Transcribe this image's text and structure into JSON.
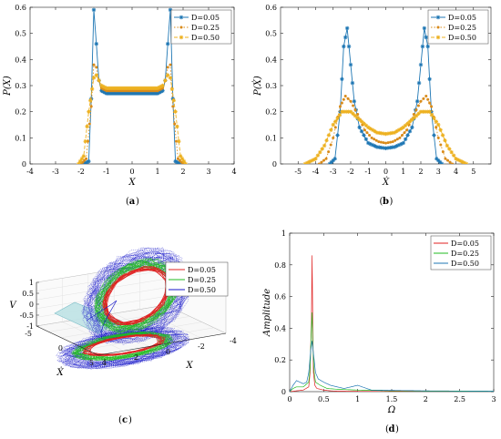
{
  "colors": {
    "blue": "#1f77b4",
    "orange": "#d98b1a",
    "yellow": "#edb120",
    "red": "#e02020",
    "green": "#22bb22",
    "darkblue": "#1515c8",
    "plane": "#bfe3e6"
  },
  "chart_data": [
    {
      "id": "a",
      "type": "line",
      "caption": "a",
      "xlabel": "X",
      "ylabel": "P(X)",
      "xlim": [
        -4,
        4
      ],
      "ylim": [
        0,
        0.6
      ],
      "xticks": [
        -4,
        -3,
        -2,
        -1,
        0,
        1,
        2,
        3,
        4
      ],
      "yticks": [
        0,
        0.1,
        0.2,
        0.3,
        0.4,
        0.5,
        0.6
      ],
      "legend_position": "top-right",
      "series": [
        {
          "name": "D=0.05",
          "style": "blue-star-solid",
          "x": [
            -1.9,
            -1.7,
            -1.6,
            -1.5,
            -1.4,
            -1.3,
            -1.2,
            -1.0,
            -0.5,
            0,
            0.5,
            1.0,
            1.2,
            1.3,
            1.4,
            1.5,
            1.6,
            1.7,
            1.9
          ],
          "y": [
            0,
            0.01,
            0.25,
            0.59,
            0.46,
            0.32,
            0.28,
            0.27,
            0.27,
            0.27,
            0.27,
            0.27,
            0.28,
            0.32,
            0.46,
            0.59,
            0.25,
            0.01,
            0
          ]
        },
        {
          "name": "D=0.25",
          "style": "orange-dot-dotted",
          "x": [
            -2.0,
            -1.8,
            -1.6,
            -1.5,
            -1.4,
            -1.3,
            -1.2,
            -1.0,
            -0.5,
            0,
            0.5,
            1.0,
            1.2,
            1.3,
            1.4,
            1.5,
            1.6,
            1.8,
            2.0
          ],
          "y": [
            0,
            0.02,
            0.22,
            0.38,
            0.37,
            0.32,
            0.29,
            0.28,
            0.28,
            0.28,
            0.28,
            0.28,
            0.29,
            0.32,
            0.37,
            0.38,
            0.22,
            0.02,
            0
          ]
        },
        {
          "name": "D=0.50",
          "style": "yellow-star-dashed",
          "x": [
            -2.1,
            -1.9,
            -1.7,
            -1.5,
            -1.4,
            -1.3,
            -1.2,
            -1.0,
            -0.5,
            0,
            0.5,
            1.0,
            1.2,
            1.3,
            1.4,
            1.5,
            1.7,
            1.9,
            2.1
          ],
          "y": [
            0,
            0.03,
            0.2,
            0.33,
            0.34,
            0.32,
            0.3,
            0.29,
            0.29,
            0.29,
            0.29,
            0.29,
            0.3,
            0.32,
            0.34,
            0.33,
            0.2,
            0.03,
            0
          ]
        }
      ]
    },
    {
      "id": "b",
      "type": "line",
      "caption": "b",
      "xlabel": "Ẋ",
      "ylabel": "P(Ẋ)",
      "xlim": [
        -6,
        6
      ],
      "ylim": [
        0,
        0.6
      ],
      "xticks": [
        -5,
        -4,
        -3,
        -2,
        -1,
        0,
        1,
        2,
        3,
        4,
        5
      ],
      "yticks": [
        0,
        0.1,
        0.2,
        0.3,
        0.4,
        0.5,
        0.6
      ],
      "legend_position": "top-right",
      "series": [
        {
          "name": "D=0.05",
          "style": "blue-star-solid",
          "x": [
            -3.2,
            -2.9,
            -2.6,
            -2.4,
            -2.2,
            -2.0,
            -1.8,
            -1.5,
            -1.0,
            -0.5,
            0,
            0.5,
            1.0,
            1.5,
            1.8,
            2.0,
            2.2,
            2.4,
            2.6,
            2.9,
            3.2
          ],
          "y": [
            0,
            0.02,
            0.2,
            0.45,
            0.52,
            0.38,
            0.24,
            0.14,
            0.08,
            0.065,
            0.06,
            0.065,
            0.08,
            0.14,
            0.24,
            0.38,
            0.52,
            0.45,
            0.2,
            0.02,
            0
          ]
        },
        {
          "name": "D=0.25",
          "style": "orange-dot-dotted",
          "x": [
            -3.8,
            -3.4,
            -3.0,
            -2.6,
            -2.3,
            -2.0,
            -1.6,
            -1.2,
            -0.8,
            -0.4,
            0,
            0.4,
            0.8,
            1.2,
            1.6,
            2.0,
            2.3,
            2.6,
            3.0,
            3.4,
            3.8
          ],
          "y": [
            0,
            0.02,
            0.1,
            0.22,
            0.26,
            0.24,
            0.19,
            0.13,
            0.1,
            0.085,
            0.08,
            0.085,
            0.1,
            0.13,
            0.19,
            0.24,
            0.26,
            0.22,
            0.1,
            0.02,
            0
          ]
        },
        {
          "name": "D=0.50",
          "style": "yellow-star-dashed",
          "x": [
            -4.6,
            -4.0,
            -3.5,
            -3.0,
            -2.5,
            -2.0,
            -1.5,
            -1.0,
            -0.5,
            0,
            0.5,
            1.0,
            1.5,
            2.0,
            2.5,
            3.0,
            3.5,
            4.0,
            4.6
          ],
          "y": [
            0,
            0.02,
            0.07,
            0.15,
            0.2,
            0.2,
            0.17,
            0.14,
            0.12,
            0.115,
            0.12,
            0.14,
            0.17,
            0.2,
            0.2,
            0.15,
            0.07,
            0.02,
            0
          ]
        }
      ]
    },
    {
      "id": "c",
      "type": "scatter",
      "caption": "c",
      "xlabel": "X",
      "ylabel": "V",
      "zlabel": "Ẋ",
      "vticks": [
        -1,
        -0.5,
        0,
        0.5,
        1
      ],
      "xticks": [
        -4,
        -2,
        0,
        2,
        4
      ],
      "xdot_ticks": [
        -5,
        0,
        5
      ],
      "legend_position": "top-right",
      "grid": true,
      "series": [
        {
          "name": "D=0.05",
          "style": "red-solid"
        },
        {
          "name": "D=0.25",
          "style": "green-dashed"
        },
        {
          "name": "D=0.50",
          "style": "darkblue-dotted"
        }
      ]
    },
    {
      "id": "d",
      "type": "line",
      "caption": "d",
      "xlabel": "Ω",
      "ylabel": "Amplitude",
      "xlim": [
        0,
        3
      ],
      "ylim": [
        0,
        1
      ],
      "xticks": [
        0,
        0.5,
        1,
        1.5,
        2,
        2.5,
        3
      ],
      "yticks": [
        0,
        0.2,
        0.4,
        0.6,
        0.8,
        1
      ],
      "legend_position": "top-right",
      "series": [
        {
          "name": "D=0.05",
          "style": "red-solid",
          "x": [
            0,
            0.1,
            0.2,
            0.28,
            0.3,
            0.32,
            0.33,
            0.34,
            0.35,
            0.37,
            0.4,
            0.5,
            0.6,
            0.7,
            1.0,
            1.5,
            2,
            3
          ],
          "y": [
            0,
            0.005,
            0.01,
            0.03,
            0.12,
            0.45,
            0.86,
            0.4,
            0.12,
            0.04,
            0.02,
            0.01,
            0.005,
            0.003,
            0.002,
            0.001,
            0,
            0
          ]
        },
        {
          "name": "D=0.25",
          "style": "green-solid",
          "x": [
            0,
            0.05,
            0.1,
            0.2,
            0.28,
            0.3,
            0.32,
            0.33,
            0.34,
            0.36,
            0.38,
            0.45,
            0.55,
            0.7,
            1.0,
            1.5,
            2,
            3
          ],
          "y": [
            0,
            0.02,
            0.03,
            0.03,
            0.06,
            0.15,
            0.4,
            0.5,
            0.3,
            0.12,
            0.06,
            0.04,
            0.02,
            0.015,
            0.01,
            0.005,
            0.003,
            0.002
          ]
        },
        {
          "name": "D=0.50",
          "style": "blue-solid",
          "x": [
            0,
            0.05,
            0.1,
            0.2,
            0.25,
            0.28,
            0.31,
            0.33,
            0.35,
            0.38,
            0.42,
            0.5,
            0.6,
            0.8,
            1.0,
            1.2,
            1.5,
            2,
            2.5,
            3
          ],
          "y": [
            0,
            0.04,
            0.07,
            0.05,
            0.06,
            0.12,
            0.26,
            0.32,
            0.24,
            0.12,
            0.08,
            0.06,
            0.04,
            0.02,
            0.04,
            0.01,
            0.008,
            0.005,
            0.004,
            0.003
          ]
        }
      ]
    }
  ]
}
